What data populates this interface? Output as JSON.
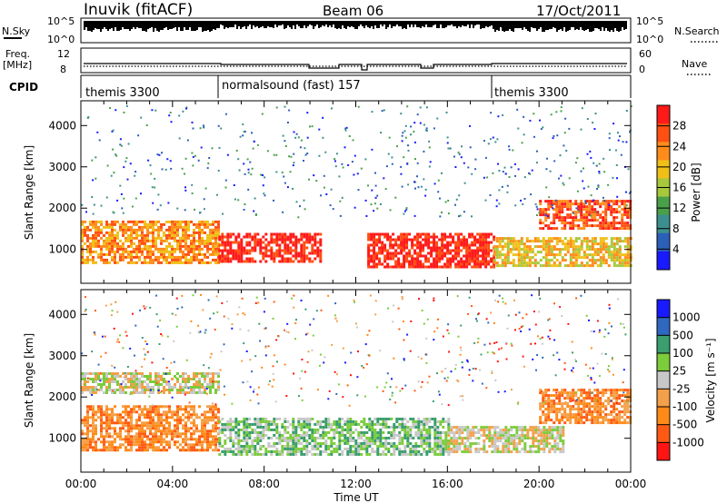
{
  "header": {
    "station": "Inuvik (fitACF)",
    "beam": "Beam 06",
    "date": "17/Oct/2011"
  },
  "strips": {
    "nsky_label": "N.Sky",
    "nsky_ticks": [
      "10^5",
      "10^0"
    ],
    "nsearch_label": "N.Search",
    "nsearch_ticks": [
      "10^5",
      "10^0"
    ],
    "freq_label_1": "Freq.",
    "freq_label_2": "[MHz]",
    "freq_ticks": [
      "12",
      "8"
    ],
    "nave_label": "Nave",
    "nave_ticks": [
      "60",
      "0"
    ],
    "cpid_label": "CPID",
    "cpid_segments": [
      {
        "label": "themis 3300",
        "start_hour": 0,
        "end_hour": 6
      },
      {
        "label": "normalsound (fast) 157",
        "start_hour": 6,
        "end_hour": 18
      },
      {
        "label": "themis 3300",
        "start_hour": 18,
        "end_hour": 24
      }
    ]
  },
  "colors": {
    "power_scale": [
      "#1a1aff",
      "#2b5fb8",
      "#3c8f8f",
      "#4aa04a",
      "#a8c83c",
      "#f0c018",
      "#ff8c1a",
      "#ff5014",
      "#ff1a1a"
    ],
    "velocity_scale": [
      "#1a1aff",
      "#2e68c0",
      "#3a9e6e",
      "#7ccc3c",
      "#c8c8c8",
      "#f4a04a",
      "#ff8a18",
      "#ff5a14",
      "#ff1414"
    ]
  },
  "chart_data": [
    {
      "type": "heatmap",
      "name": "power",
      "xlabel": "Time UT",
      "ylabel": "Slant Range [km]",
      "x_ticks": [
        "00:00",
        "04:00",
        "08:00",
        "12:00",
        "16:00",
        "20:00",
        "00:00"
      ],
      "y_ticks": [
        "1000",
        "2000",
        "3000",
        "4000"
      ],
      "xlim": [
        0,
        24
      ],
      "ylim": [
        180,
        4600
      ],
      "colorbar_label": "Power [dB]",
      "colorbar_ticks": [
        "4",
        "8",
        "12",
        "16",
        "20",
        "24",
        "28"
      ],
      "features": [
        {
          "time": [
            0,
            6
          ],
          "range": [
            700,
            1700
          ],
          "level": 22
        },
        {
          "time": [
            6,
            10.5
          ],
          "range": [
            700,
            1400
          ],
          "level": 28
        },
        {
          "time": [
            12.5,
            18
          ],
          "range": [
            600,
            1400
          ],
          "level": 28
        },
        {
          "time": [
            18,
            24
          ],
          "range": [
            600,
            1300
          ],
          "level": 16
        },
        {
          "time": [
            20,
            24
          ],
          "range": [
            1500,
            2200
          ],
          "level": 26
        }
      ]
    },
    {
      "type": "heatmap",
      "name": "velocity",
      "xlabel": "Time UT",
      "ylabel": "Slant Range [km]",
      "x_ticks": [
        "00:00",
        "04:00",
        "08:00",
        "12:00",
        "16:00",
        "20:00",
        "00:00"
      ],
      "y_ticks": [
        "1000",
        "2000",
        "3000",
        "4000"
      ],
      "xlim": [
        0,
        24
      ],
      "ylim": [
        180,
        4600
      ],
      "colorbar_label": "Velocity [m s⁻¹]",
      "colorbar_ticks": [
        "1000",
        "500",
        "100",
        "25",
        "-25",
        "-100",
        "-500",
        "-1000"
      ],
      "features": [
        {
          "time": [
            0,
            6
          ],
          "range": [
            700,
            1800
          ],
          "velocity": -100
        },
        {
          "time": [
            0,
            6
          ],
          "range": [
            2100,
            2600
          ],
          "velocity": 0
        },
        {
          "time": [
            6,
            16
          ],
          "range": [
            600,
            1500
          ],
          "velocity": 100
        },
        {
          "time": [
            16,
            21
          ],
          "range": [
            700,
            1300
          ],
          "velocity": 0
        },
        {
          "time": [
            20,
            24
          ],
          "range": [
            1400,
            2200
          ],
          "velocity": -100
        }
      ]
    }
  ]
}
